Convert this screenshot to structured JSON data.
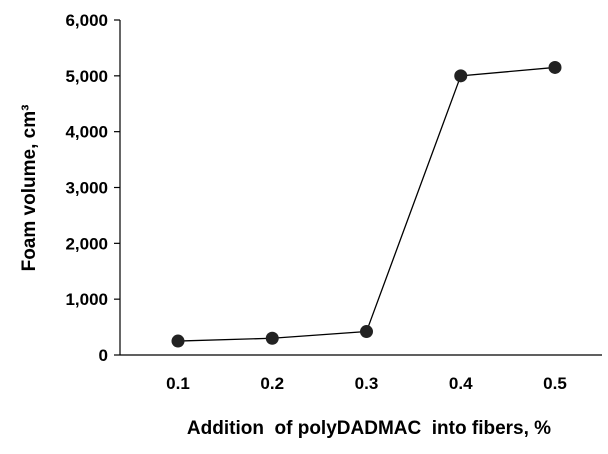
{
  "chart_data": {
    "type": "line",
    "title": "",
    "xlabel": "Addition  of polyDADMAC  into fibers, %",
    "ylabel": "Foam volume, cm³",
    "x": [
      0.1,
      0.2,
      0.3,
      0.4,
      0.5
    ],
    "x_tick_labels": [
      "0.1",
      "0.2",
      "0.3",
      "0.4",
      "0.5"
    ],
    "y_tick_values": [
      0,
      1000,
      2000,
      3000,
      4000,
      5000,
      6000
    ],
    "y_tick_labels": [
      "0",
      "1,000",
      "2,000",
      "3,000",
      "4,000",
      "5,000",
      "6,000"
    ],
    "ylim": [
      0,
      6000
    ],
    "series": [
      {
        "values": [
          250,
          300,
          420,
          5000,
          5150
        ]
      }
    ],
    "grid": false,
    "legend": "none",
    "colors": {
      "line": "#000000",
      "marker": "#222222",
      "axis": "#000000"
    }
  }
}
